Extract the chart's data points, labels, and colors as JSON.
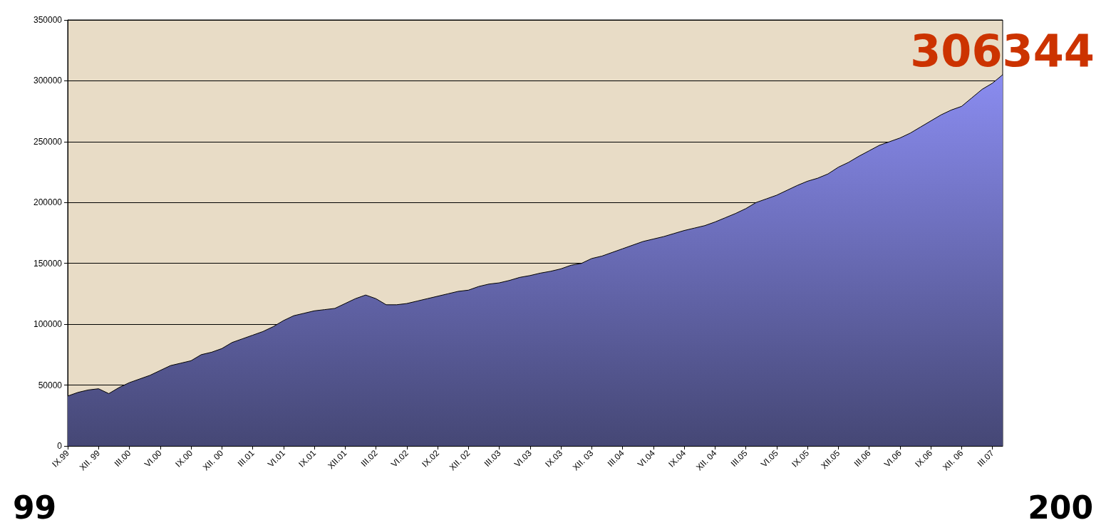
{
  "chart_data": {
    "type": "area",
    "categories": [
      "IX.99",
      null,
      null,
      "XII. 99",
      null,
      null,
      "III.00",
      null,
      null,
      "VI.00",
      null,
      null,
      "IX.00",
      null,
      null,
      "XII. 00",
      null,
      null,
      "III.01",
      null,
      null,
      "VI.01",
      null,
      null,
      "IX.01",
      null,
      null,
      "XII.01",
      null,
      null,
      "III.02",
      null,
      null,
      "VI.02",
      null,
      null,
      "IX.02",
      null,
      null,
      "XII. 02",
      null,
      null,
      "III.03",
      null,
      null,
      "VI.03",
      null,
      null,
      "IX.03",
      null,
      null,
      "XII. 03",
      null,
      null,
      "III.04",
      null,
      null,
      "VI.04",
      null,
      null,
      "IX.04",
      null,
      null,
      "XII. 04",
      null,
      null,
      "III.05",
      null,
      null,
      "VI.05",
      null,
      null,
      "IX.05",
      null,
      null,
      "XII.05",
      null,
      null,
      "III.06",
      null,
      null,
      "VI.06",
      null,
      null,
      "IX.06",
      null,
      null,
      "XII. 06",
      null,
      null,
      "III.07",
      null
    ],
    "series": [
      {
        "color": "#8a8cf0",
        "values": [
          41000,
          44000,
          46000,
          47000,
          43000,
          48000,
          52000,
          55000,
          58000,
          62000,
          66000,
          68000,
          70000,
          75000,
          77000,
          80000,
          85000,
          88000,
          91000,
          94000,
          98000,
          103000,
          107000,
          109000,
          111000,
          112000,
          113000,
          117000,
          121000,
          124000,
          121000,
          116000,
          116000,
          117000,
          119000,
          121000,
          123000,
          125000,
          127000,
          128000,
          131000,
          133000,
          134000,
          136000,
          138500,
          140000,
          142000,
          143500,
          145500,
          148500,
          150000,
          154000,
          156000,
          159000,
          162000,
          165000,
          168000,
          170000,
          172000,
          174500,
          177000,
          179000,
          181000,
          184000,
          187500,
          191000,
          195000,
          200000,
          203000,
          206000,
          210000,
          214000,
          217500,
          220000,
          223500,
          229000,
          233000,
          238000,
          242500,
          247000,
          250000,
          253000,
          257000,
          262000,
          267000,
          272000,
          276000,
          279000,
          286000,
          293000,
          298000,
          305000
        ]
      }
    ],
    "ylim": [
      0,
      350000
    ],
    "yticks": [
      0,
      50000,
      100000,
      150000,
      200000,
      250000,
      300000,
      350000
    ],
    "grid": "y",
    "annotations": [
      "306344",
      "99",
      "200"
    ]
  }
}
